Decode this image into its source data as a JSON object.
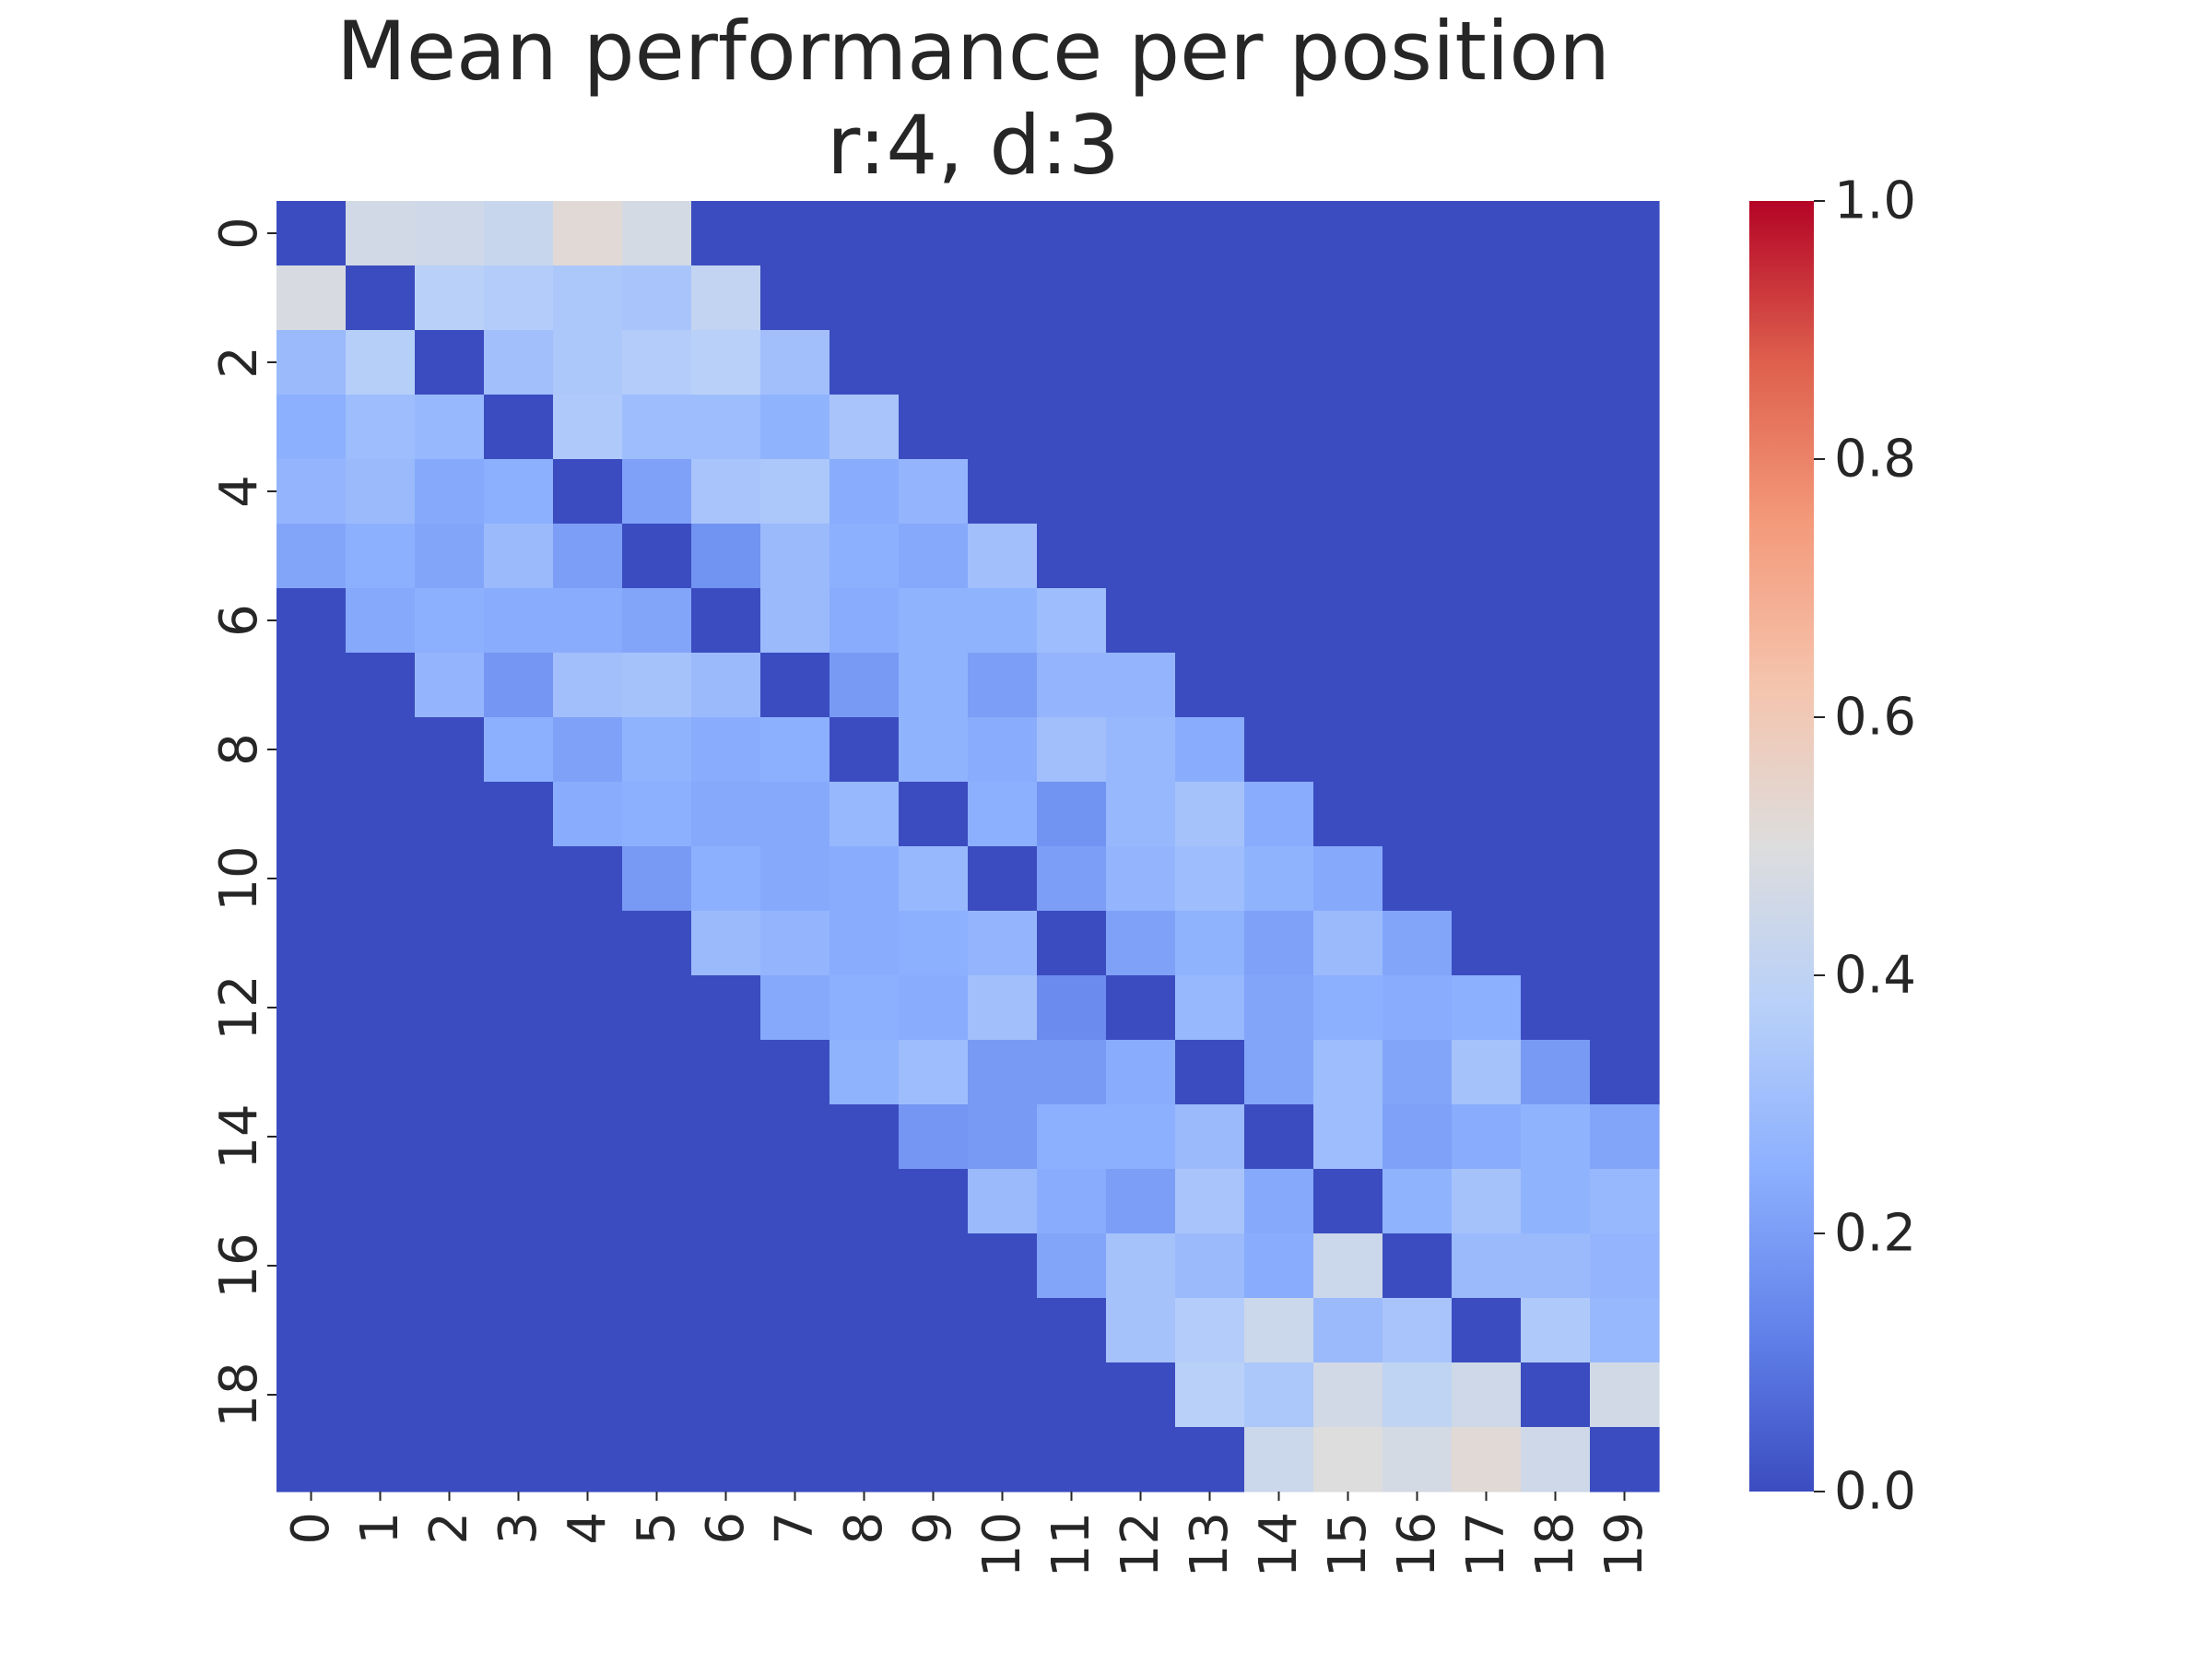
{
  "chart_data": {
    "type": "heatmap",
    "title_lines": [
      "Mean performance per position",
      "r:4, d:3"
    ],
    "xlabel": "",
    "ylabel": "",
    "x_categories": [
      "0",
      "1",
      "2",
      "3",
      "4",
      "5",
      "6",
      "7",
      "8",
      "9",
      "10",
      "11",
      "12",
      "13",
      "14",
      "15",
      "16",
      "17",
      "18",
      "19"
    ],
    "y_categories": [
      "0",
      "1",
      "2",
      "3",
      "4",
      "5",
      "6",
      "7",
      "8",
      "9",
      "10",
      "11",
      "12",
      "13",
      "14",
      "15",
      "16",
      "17",
      "18",
      "19"
    ],
    "x_tick_labels": [
      "0",
      "1",
      "2",
      "3",
      "4",
      "5",
      "6",
      "7",
      "8",
      "9",
      "10",
      "11",
      "12",
      "13",
      "14",
      "15",
      "16",
      "17",
      "18",
      "19"
    ],
    "y_tick_labels": [
      "0",
      "2",
      "4",
      "6",
      "8",
      "10",
      "12",
      "14",
      "16",
      "18"
    ],
    "colormap": "coolwarm",
    "color_range": [
      0.0,
      1.0
    ],
    "colorbar_ticks": [
      "0.0",
      "0.2",
      "0.4",
      "0.6",
      "0.8",
      "1.0"
    ],
    "colors": {
      "low": "#3b4cc0",
      "mid": "#dddddd",
      "high": "#b40426"
    },
    "values": [
      [
        0.0,
        0.46,
        0.45,
        0.43,
        0.52,
        0.47,
        0.0,
        0.0,
        0.0,
        0.0,
        0.0,
        0.0,
        0.0,
        0.0,
        0.0,
        0.0,
        0.0,
        0.0,
        0.0,
        0.0
      ],
      [
        0.48,
        0.0,
        0.38,
        0.36,
        0.34,
        0.33,
        0.41,
        0.0,
        0.0,
        0.0,
        0.0,
        0.0,
        0.0,
        0.0,
        0.0,
        0.0,
        0.0,
        0.0,
        0.0,
        0.0
      ],
      [
        0.29,
        0.37,
        0.0,
        0.31,
        0.34,
        0.36,
        0.38,
        0.31,
        0.0,
        0.0,
        0.0,
        0.0,
        0.0,
        0.0,
        0.0,
        0.0,
        0.0,
        0.0,
        0.0,
        0.0
      ],
      [
        0.25,
        0.3,
        0.28,
        0.0,
        0.35,
        0.3,
        0.3,
        0.26,
        0.33,
        0.0,
        0.0,
        0.0,
        0.0,
        0.0,
        0.0,
        0.0,
        0.0,
        0.0,
        0.0,
        0.0
      ],
      [
        0.27,
        0.29,
        0.23,
        0.25,
        0.0,
        0.21,
        0.33,
        0.34,
        0.24,
        0.27,
        0.0,
        0.0,
        0.0,
        0.0,
        0.0,
        0.0,
        0.0,
        0.0,
        0.0,
        0.0
      ],
      [
        0.22,
        0.25,
        0.22,
        0.29,
        0.2,
        0.0,
        0.17,
        0.29,
        0.25,
        0.23,
        0.31,
        0.0,
        0.0,
        0.0,
        0.0,
        0.0,
        0.0,
        0.0,
        0.0,
        0.0
      ],
      [
        0.0,
        0.23,
        0.25,
        0.24,
        0.24,
        0.22,
        0.0,
        0.29,
        0.24,
        0.26,
        0.26,
        0.3,
        0.0,
        0.0,
        0.0,
        0.0,
        0.0,
        0.0,
        0.0,
        0.0
      ],
      [
        0.0,
        0.0,
        0.27,
        0.18,
        0.31,
        0.32,
        0.29,
        0.0,
        0.19,
        0.26,
        0.2,
        0.27,
        0.27,
        0.0,
        0.0,
        0.0,
        0.0,
        0.0,
        0.0,
        0.0
      ],
      [
        0.0,
        0.0,
        0.0,
        0.25,
        0.21,
        0.26,
        0.24,
        0.25,
        0.0,
        0.26,
        0.24,
        0.31,
        0.28,
        0.24,
        0.0,
        0.0,
        0.0,
        0.0,
        0.0,
        0.0
      ],
      [
        0.0,
        0.0,
        0.0,
        0.0,
        0.24,
        0.25,
        0.23,
        0.23,
        0.28,
        0.0,
        0.25,
        0.17,
        0.28,
        0.32,
        0.24,
        0.0,
        0.0,
        0.0,
        0.0,
        0.0
      ],
      [
        0.0,
        0.0,
        0.0,
        0.0,
        0.0,
        0.19,
        0.25,
        0.23,
        0.24,
        0.28,
        0.0,
        0.2,
        0.27,
        0.3,
        0.26,
        0.23,
        0.0,
        0.0,
        0.0,
        0.0
      ],
      [
        0.0,
        0.0,
        0.0,
        0.0,
        0.0,
        0.0,
        0.29,
        0.27,
        0.24,
        0.25,
        0.27,
        0.0,
        0.21,
        0.26,
        0.21,
        0.29,
        0.22,
        0.0,
        0.0,
        0.0
      ],
      [
        0.0,
        0.0,
        0.0,
        0.0,
        0.0,
        0.0,
        0.0,
        0.23,
        0.25,
        0.24,
        0.31,
        0.15,
        0.0,
        0.28,
        0.22,
        0.25,
        0.24,
        0.25,
        0.0,
        0.0
      ],
      [
        0.0,
        0.0,
        0.0,
        0.0,
        0.0,
        0.0,
        0.0,
        0.0,
        0.26,
        0.3,
        0.19,
        0.19,
        0.24,
        0.0,
        0.22,
        0.3,
        0.22,
        0.32,
        0.19,
        0.0
      ],
      [
        0.0,
        0.0,
        0.0,
        0.0,
        0.0,
        0.0,
        0.0,
        0.0,
        0.0,
        0.18,
        0.19,
        0.25,
        0.25,
        0.29,
        0.0,
        0.3,
        0.21,
        0.24,
        0.26,
        0.22
      ],
      [
        0.0,
        0.0,
        0.0,
        0.0,
        0.0,
        0.0,
        0.0,
        0.0,
        0.0,
        0.0,
        0.29,
        0.24,
        0.2,
        0.33,
        0.23,
        0.0,
        0.26,
        0.32,
        0.26,
        0.28
      ],
      [
        0.0,
        0.0,
        0.0,
        0.0,
        0.0,
        0.0,
        0.0,
        0.0,
        0.0,
        0.0,
        0.0,
        0.22,
        0.32,
        0.29,
        0.24,
        0.44,
        0.0,
        0.29,
        0.29,
        0.27
      ],
      [
        0.0,
        0.0,
        0.0,
        0.0,
        0.0,
        0.0,
        0.0,
        0.0,
        0.0,
        0.0,
        0.0,
        0.0,
        0.32,
        0.36,
        0.44,
        0.29,
        0.33,
        0.0,
        0.35,
        0.28
      ],
      [
        0.0,
        0.0,
        0.0,
        0.0,
        0.0,
        0.0,
        0.0,
        0.0,
        0.0,
        0.0,
        0.0,
        0.0,
        0.0,
        0.38,
        0.34,
        0.46,
        0.4,
        0.45,
        0.0,
        0.46
      ],
      [
        0.0,
        0.0,
        0.0,
        0.0,
        0.0,
        0.0,
        0.0,
        0.0,
        0.0,
        0.0,
        0.0,
        0.0,
        0.0,
        0.0,
        0.44,
        0.5,
        0.47,
        0.52,
        0.45,
        0.0
      ]
    ]
  }
}
